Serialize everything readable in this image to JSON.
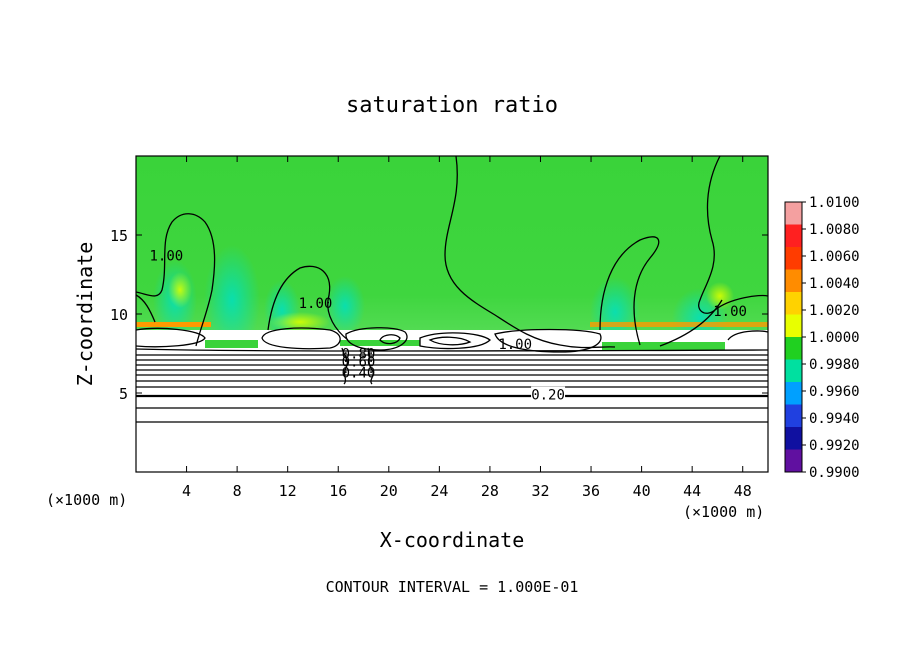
{
  "chart_data": {
    "type": "heatmap",
    "title": "saturation ratio",
    "xlabel": "X-coordinate",
    "ylabel": "Z-coordinate",
    "x_unit_left": "(×1000 m)",
    "x_unit_right": "(×1000 m)",
    "xlim": [
      0,
      50
    ],
    "ylim": [
      0,
      20
    ],
    "x_ticks": [
      4,
      8,
      12,
      16,
      20,
      24,
      28,
      32,
      36,
      40,
      44,
      48
    ],
    "y_ticks": [
      5,
      10,
      15
    ],
    "footnote": "CONTOUR INTERVAL = 1.000E-01",
    "colorbar": {
      "range": [
        0.99,
        1.01
      ],
      "labels": [
        "1.0100",
        "1.0080",
        "1.0060",
        "1.0040",
        "1.0020",
        "1.0000",
        "0.9980",
        "0.9960",
        "0.9940",
        "0.9920",
        "0.9900"
      ],
      "colors": [
        "#f4a0a0",
        "#ff2020",
        "#ff3c00",
        "#ff8c00",
        "#ffd200",
        "#e8ff00",
        "#20d020",
        "#00e0a0",
        "#00a0ff",
        "#2040e0",
        "#1010a0",
        "#6010a0"
      ]
    },
    "contour_labels": [
      {
        "text": "1.00",
        "x": 2.4,
        "z": 13.7
      },
      {
        "text": "1.00",
        "x": 14.2,
        "z": 10.7
      },
      {
        "text": "1.00",
        "x": 30.0,
        "z": 8.1
      },
      {
        "text": "1.00",
        "x": 47.0,
        "z": 10.2
      },
      {
        "text": "0.20",
        "x": 32.6,
        "z": 4.9
      },
      {
        "text": "0.40",
        "x": 17.6,
        "z": 6.3
      },
      {
        "text": "0.80",
        "x": 17.6,
        "z": 7.5
      },
      {
        "text": "0.60",
        "x": 17.6,
        "z": 7.0
      }
    ]
  }
}
